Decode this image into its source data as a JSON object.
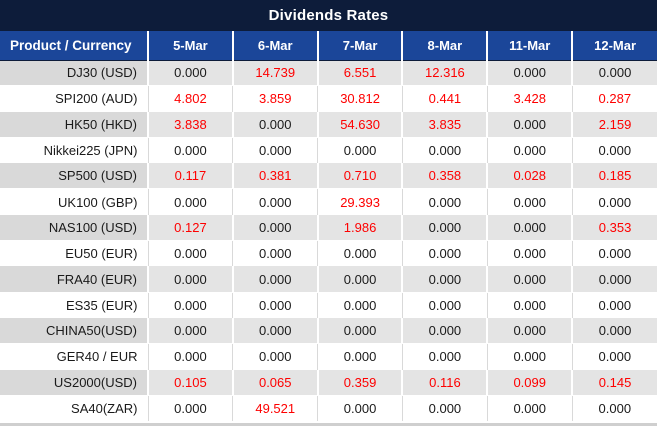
{
  "title": "Dividends Rates",
  "header": {
    "product_label": "Product / Currency",
    "dates": [
      "5-Mar",
      "6-Mar",
      "7-Mar",
      "8-Mar",
      "11-Mar",
      "12-Mar"
    ]
  },
  "rows": [
    {
      "product": "DJ30 (USD)",
      "values": [
        "0.000",
        "14.739",
        "6.551",
        "12.316",
        "0.000",
        "0.000"
      ]
    },
    {
      "product": "SPI200 (AUD)",
      "values": [
        "4.802",
        "3.859",
        "30.812",
        "0.441",
        "3.428",
        "0.287"
      ]
    },
    {
      "product": "HK50 (HKD)",
      "values": [
        "3.838",
        "0.000",
        "54.630",
        "3.835",
        "0.000",
        "2.159"
      ]
    },
    {
      "product": "Nikkei225 (JPN)",
      "values": [
        "0.000",
        "0.000",
        "0.000",
        "0.000",
        "0.000",
        "0.000"
      ]
    },
    {
      "product": "SP500 (USD)",
      "values": [
        "0.117",
        "0.381",
        "0.710",
        "0.358",
        "0.028",
        "0.185"
      ]
    },
    {
      "product": "UK100 (GBP)",
      "values": [
        "0.000",
        "0.000",
        "29.393",
        "0.000",
        "0.000",
        "0.000"
      ]
    },
    {
      "product": "NAS100 (USD)",
      "values": [
        "0.127",
        "0.000",
        "1.986",
        "0.000",
        "0.000",
        "0.353"
      ]
    },
    {
      "product": "EU50 (EUR)",
      "values": [
        "0.000",
        "0.000",
        "0.000",
        "0.000",
        "0.000",
        "0.000"
      ]
    },
    {
      "product": "FRA40 (EUR)",
      "values": [
        "0.000",
        "0.000",
        "0.000",
        "0.000",
        "0.000",
        "0.000"
      ]
    },
    {
      "product": "ES35 (EUR)",
      "values": [
        "0.000",
        "0.000",
        "0.000",
        "0.000",
        "0.000",
        "0.000"
      ]
    },
    {
      "product": "CHINA50(USD)",
      "values": [
        "0.000",
        "0.000",
        "0.000",
        "0.000",
        "0.000",
        "0.000"
      ]
    },
    {
      "product": "GER40 / EUR",
      "values": [
        "0.000",
        "0.000",
        "0.000",
        "0.000",
        "0.000",
        "0.000"
      ]
    },
    {
      "product": "US2000(USD)",
      "values": [
        "0.105",
        "0.065",
        "0.359",
        "0.116",
        "0.099",
        "0.145"
      ]
    },
    {
      "product": "SA40(ZAR)",
      "values": [
        "0.000",
        "49.521",
        "0.000",
        "0.000",
        "0.000",
        "0.000"
      ]
    }
  ],
  "colors": {
    "title_bg": "#0d1c3a",
    "header_bg": "#1b4699",
    "row_alt_bg": "#e4e4e4",
    "label_alt_bg": "#d9d9d9",
    "value_red": "#fe0000",
    "text_dark": "#1a1a1a"
  }
}
